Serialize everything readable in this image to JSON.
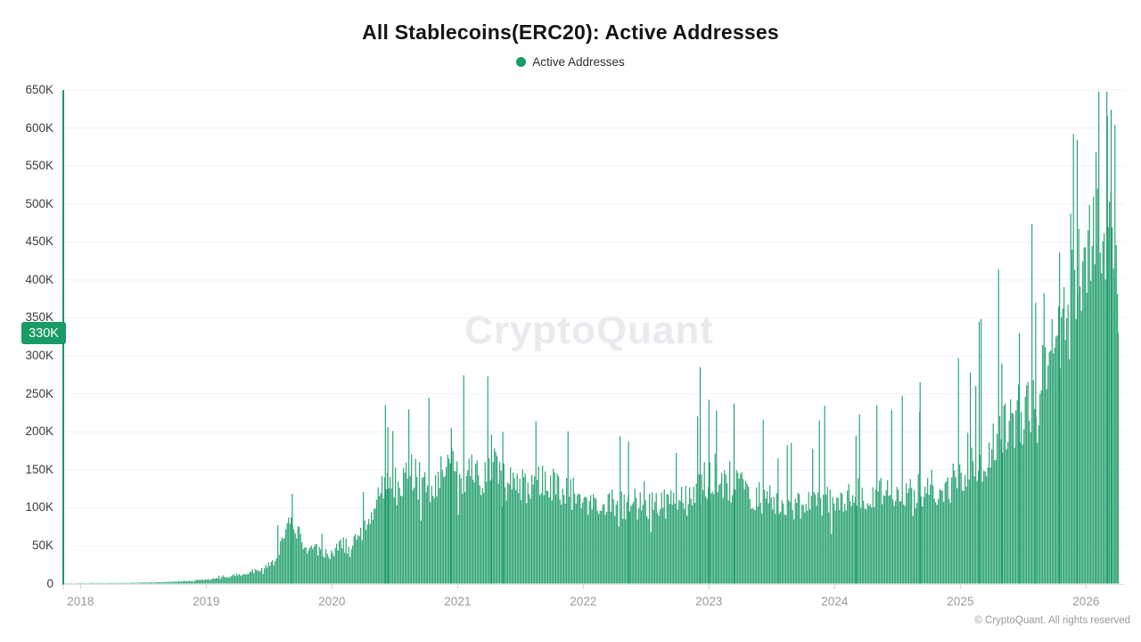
{
  "title": "All Stablecoins(ERC20): Active Addresses",
  "legend": {
    "label": "Active Addresses",
    "marker_color": "#199b66"
  },
  "watermark": "CryptoQuant",
  "copyright": "© CryptoQuant. All rights reserved",
  "latest_badge": {
    "label": "330K",
    "value_thousands": 330
  },
  "colors": {
    "green": "#199b66",
    "grid": "#f2f2f4",
    "baseline": "#e3e3e5",
    "tick": "#cfcfd2",
    "xlabel": "#9a9a9a",
    "ylabel": "#3b3b3b",
    "title": "#141414",
    "watermark": "#e9e9ee",
    "copyright": "#9a9a9a",
    "badge_text": "#ffffff"
  },
  "chart_data": {
    "type": "bar",
    "title": "All Stablecoins(ERC20): Active Addresses",
    "series_name": "Active Addresses",
    "xlabel": "",
    "ylabel": "",
    "y_unit": "K",
    "ylim": [
      0,
      650
    ],
    "x_range": [
      2017.87,
      2026.26
    ],
    "grid": "horizontal-faint",
    "legend_position": "top-center",
    "yticks": [
      {
        "v": 0,
        "label": "0"
      },
      {
        "v": 50,
        "label": "50K"
      },
      {
        "v": 100,
        "label": "100K"
      },
      {
        "v": 150,
        "label": "150K"
      },
      {
        "v": 200,
        "label": "200K"
      },
      {
        "v": 250,
        "label": "250K"
      },
      {
        "v": 300,
        "label": "300K"
      },
      {
        "v": 350,
        "label": "350K"
      },
      {
        "v": 400,
        "label": "400K"
      },
      {
        "v": 450,
        "label": "450K"
      },
      {
        "v": 500,
        "label": "500K"
      },
      {
        "v": 550,
        "label": "550K"
      },
      {
        "v": 600,
        "label": "600K"
      },
      {
        "v": 650,
        "label": "650K"
      }
    ],
    "xticks": [
      {
        "v": 2018,
        "label": "2018"
      },
      {
        "v": 2019,
        "label": "2019"
      },
      {
        "v": 2020,
        "label": "2020"
      },
      {
        "v": 2021,
        "label": "2021"
      },
      {
        "v": 2022,
        "label": "2022"
      },
      {
        "v": 2023,
        "label": "2023"
      },
      {
        "v": 2024,
        "label": "2024"
      },
      {
        "v": 2025,
        "label": "2025"
      },
      {
        "v": 2026,
        "label": "2026"
      }
    ],
    "envelope_monthly_thousands": [
      [
        2017.88,
        0.4
      ],
      [
        2018.3,
        0.8
      ],
      [
        2018.6,
        1.5
      ],
      [
        2018.8,
        3
      ],
      [
        2019.0,
        5
      ],
      [
        2019.15,
        8
      ],
      [
        2019.3,
        13
      ],
      [
        2019.45,
        20
      ],
      [
        2019.55,
        30
      ],
      [
        2019.62,
        60
      ],
      [
        2019.68,
        85
      ],
      [
        2019.73,
        70
      ],
      [
        2019.78,
        50
      ],
      [
        2019.9,
        45
      ],
      [
        2020.0,
        38
      ],
      [
        2020.08,
        52
      ],
      [
        2020.15,
        47
      ],
      [
        2020.22,
        65
      ],
      [
        2020.3,
        88
      ],
      [
        2020.38,
        115
      ],
      [
        2020.45,
        140
      ],
      [
        2020.55,
        137
      ],
      [
        2020.65,
        145
      ],
      [
        2020.75,
        127
      ],
      [
        2020.85,
        141
      ],
      [
        2020.95,
        150
      ],
      [
        2021.05,
        145
      ],
      [
        2021.15,
        141
      ],
      [
        2021.25,
        150
      ],
      [
        2021.35,
        157
      ],
      [
        2021.45,
        140
      ],
      [
        2021.55,
        132
      ],
      [
        2021.65,
        130
      ],
      [
        2021.75,
        128
      ],
      [
        2021.85,
        121
      ],
      [
        2021.95,
        118
      ],
      [
        2022.1,
        108
      ],
      [
        2022.25,
        105
      ],
      [
        2022.4,
        102
      ],
      [
        2022.55,
        100
      ],
      [
        2022.7,
        107
      ],
      [
        2022.85,
        108
      ],
      [
        2022.95,
        132
      ],
      [
        2023.05,
        143
      ],
      [
        2023.15,
        137
      ],
      [
        2023.25,
        124
      ],
      [
        2023.4,
        112
      ],
      [
        2023.55,
        105
      ],
      [
        2023.7,
        102
      ],
      [
        2023.85,
        104
      ],
      [
        2024.0,
        110
      ],
      [
        2024.15,
        117
      ],
      [
        2024.3,
        115
      ],
      [
        2024.45,
        119
      ],
      [
        2024.6,
        123
      ],
      [
        2024.75,
        127
      ],
      [
        2024.9,
        133
      ],
      [
        2025.0,
        147
      ],
      [
        2025.1,
        157
      ],
      [
        2025.2,
        170
      ],
      [
        2025.3,
        190
      ],
      [
        2025.4,
        207
      ],
      [
        2025.5,
        226
      ],
      [
        2025.6,
        250
      ],
      [
        2025.7,
        280
      ],
      [
        2025.8,
        316
      ],
      [
        2025.88,
        378
      ],
      [
        2025.95,
        428
      ],
      [
        2026.02,
        428
      ],
      [
        2026.1,
        462
      ],
      [
        2026.18,
        500
      ],
      [
        2026.22,
        508
      ],
      [
        2026.26,
        430
      ]
    ],
    "spikes_thousands": [
      [
        2019.685,
        118
      ],
      [
        2020.425,
        235
      ],
      [
        2020.445,
        206
      ],
      [
        2020.95,
        205
      ],
      [
        2021.27,
        196
      ],
      [
        2021.36,
        200
      ],
      [
        2022.36,
        187
      ],
      [
        2022.74,
        172
      ],
      [
        2022.93,
        285
      ],
      [
        2023.0,
        242
      ],
      [
        2023.06,
        228
      ],
      [
        2023.2,
        237
      ],
      [
        2023.55,
        165
      ],
      [
        2024.17,
        195
      ],
      [
        2024.68,
        265
      ],
      [
        2025.08,
        278
      ],
      [
        2025.15,
        345
      ],
      [
        2025.33,
        290
      ],
      [
        2025.47,
        330
      ],
      [
        2025.6,
        370
      ],
      [
        2025.79,
        436
      ],
      [
        2025.9,
        592
      ],
      [
        2025.93,
        584
      ],
      [
        2026.08,
        568
      ],
      [
        2026.17,
        616
      ],
      [
        2026.2,
        624
      ],
      [
        2026.23,
        604
      ]
    ],
    "latest_value_thousands": 330
  }
}
